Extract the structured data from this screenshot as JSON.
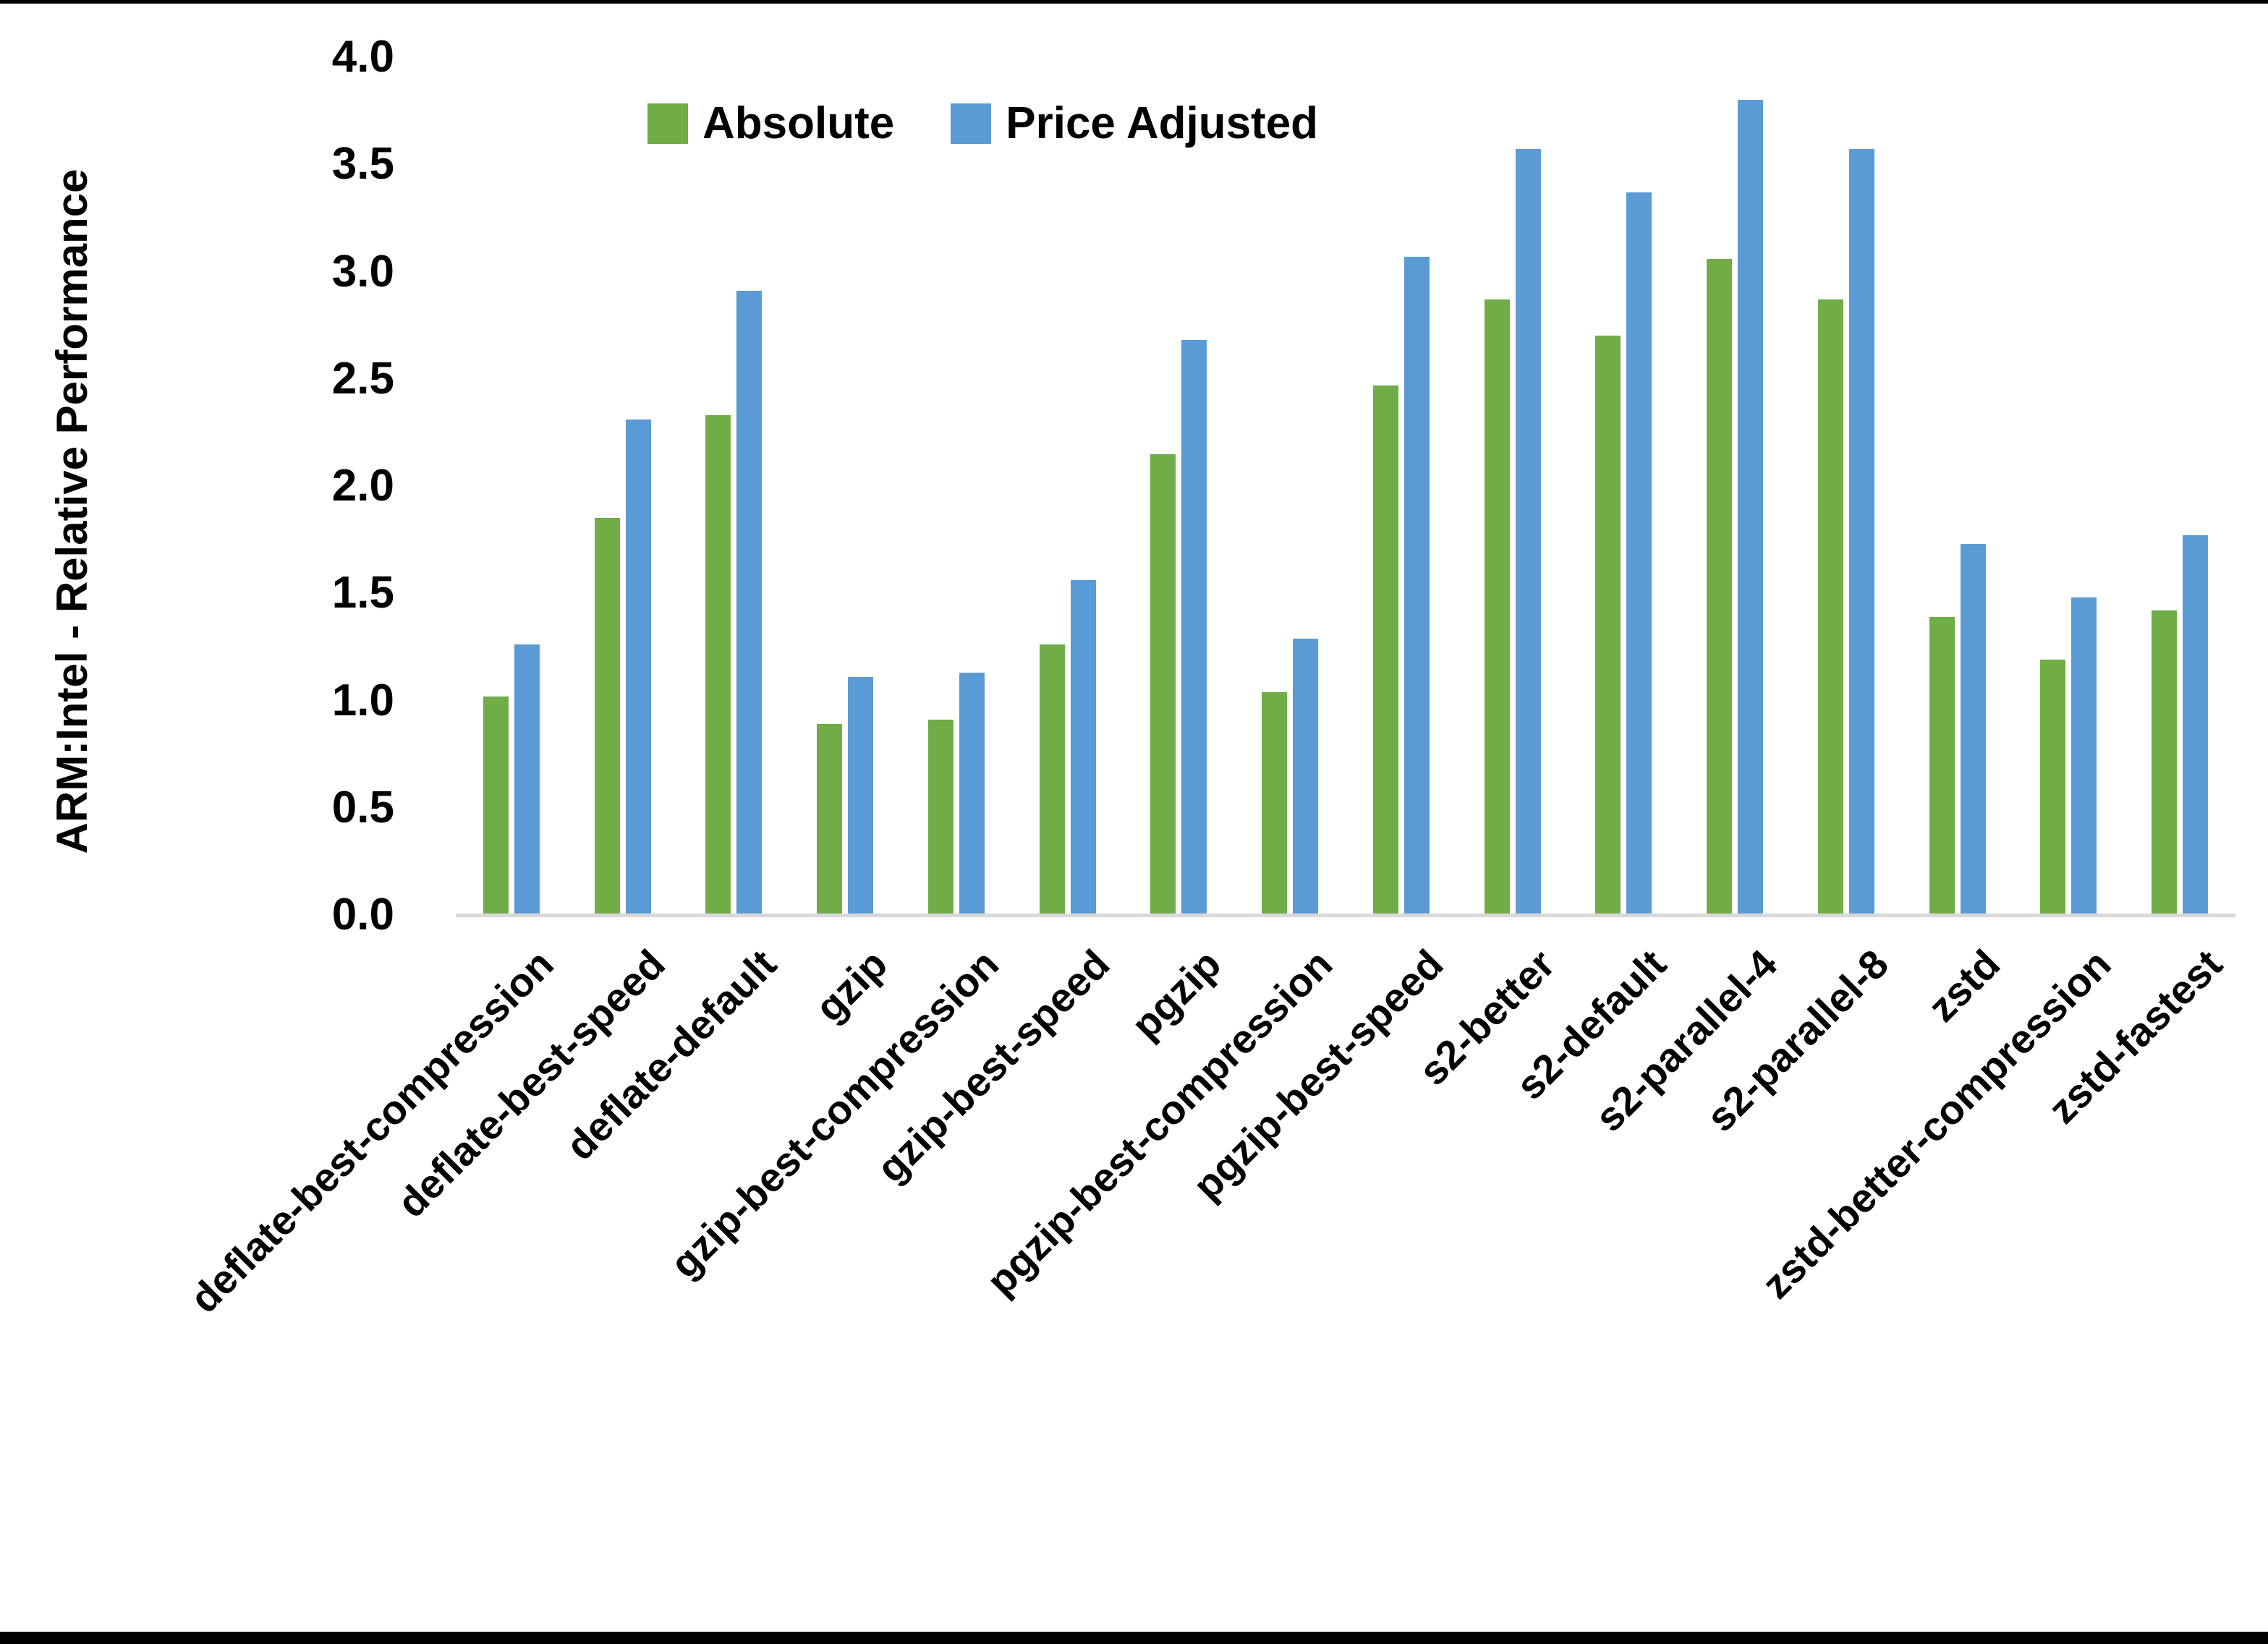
{
  "chart_data": {
    "type": "bar",
    "title": "",
    "xlabel": "",
    "ylabel": "ARM:Intel - Relative Performance",
    "ylim": [
      0.0,
      4.0
    ],
    "ytick_labels": [
      "0.0",
      "0.5",
      "1.0",
      "1.5",
      "2.0",
      "2.5",
      "3.0",
      "3.5",
      "4.0"
    ],
    "grid": false,
    "legend_position": "top-center",
    "categories": [
      "deflate-best-compression",
      "deflate-best-speed",
      "deflate-default",
      "gzip",
      "gzip-best-compression",
      "gzip-best-speed",
      "pgzip",
      "pgzip-best-compression",
      "pgzip-best-speed",
      "s2-better",
      "s2-default",
      "s2-parallel-4",
      "s2-parallel-8",
      "zstd",
      "zstd-better-compression",
      "zstd-fastest"
    ],
    "series": [
      {
        "name": "Absolute",
        "color": "#70AD47",
        "values": [
          1.02,
          1.85,
          2.33,
          0.89,
          0.91,
          1.26,
          2.15,
          1.04,
          2.47,
          2.87,
          2.7,
          3.06,
          2.87,
          1.39,
          1.19,
          1.42
        ]
      },
      {
        "name": "Price Adjusted",
        "color": "#5B9BD5",
        "values": [
          1.26,
          2.31,
          2.91,
          1.11,
          1.13,
          1.56,
          2.68,
          1.29,
          3.07,
          3.57,
          3.37,
          3.8,
          3.57,
          1.73,
          1.48,
          1.77
        ]
      }
    ]
  },
  "colors": {
    "background": "#FFFFFF",
    "axis_line": "#D9D9D9",
    "text": "#000000",
    "frame": "#000000"
  }
}
